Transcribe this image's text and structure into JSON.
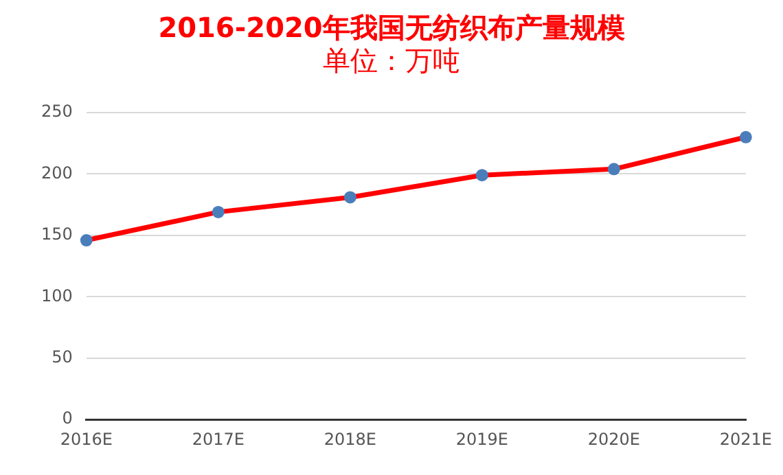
{
  "chart_data": {
    "type": "line",
    "title": "2016-2020年我国无纺织布产量规模",
    "subtitle": "单位：万吨",
    "categories": [
      "2016E",
      "2017E",
      "2018E",
      "2019E",
      "2020E",
      "2021E"
    ],
    "series": [
      {
        "color": "#ff0000",
        "values": [
          146,
          169,
          181,
          199,
          204,
          230
        ]
      }
    ],
    "ylim": [
      0,
      250
    ],
    "yticks": [
      0,
      50,
      100,
      150,
      200,
      250
    ],
    "grid": "y",
    "legend": false,
    "marker": "circle",
    "line_style": "solid"
  }
}
